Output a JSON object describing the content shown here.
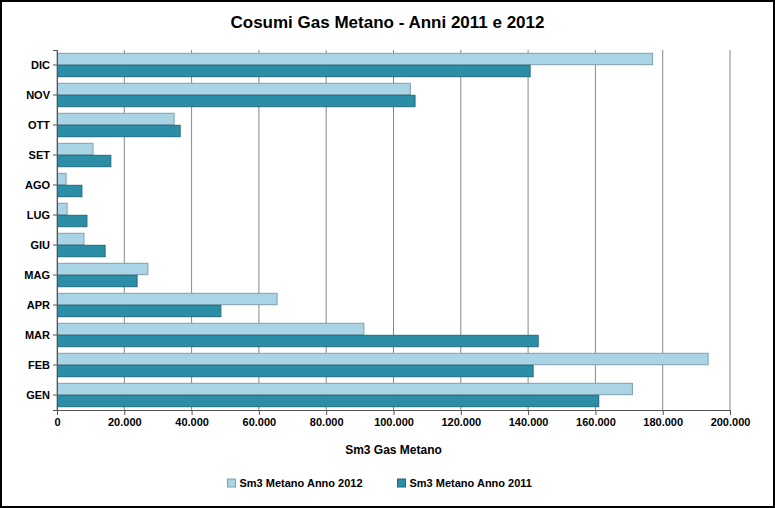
{
  "chart_data": {
    "type": "bar",
    "orientation": "horizontal",
    "title": "Cosumi Gas Metano - Anni 2011 e 2012",
    "x_label": "Sm3 Gas Metano",
    "categories": [
      "GEN",
      "FEB",
      "MAR",
      "APR",
      "MAG",
      "GIU",
      "LUG",
      "AGO",
      "SET",
      "OTT",
      "NOV",
      "DIC"
    ],
    "series": [
      {
        "name": "Sm3 Metano Anno 2012",
        "color": "#a9d4e6",
        "values": [
          171000,
          193500,
          91200,
          65400,
          27000,
          8000,
          3000,
          2700,
          10700,
          34800,
          105000,
          177000
        ]
      },
      {
        "name": "Sm3 Metano Anno 2011",
        "color": "#2b8ea6",
        "values": [
          161000,
          141500,
          143000,
          48700,
          23800,
          14300,
          8900,
          7400,
          16000,
          36600,
          106400,
          140600
        ]
      }
    ],
    "xlim": [
      0,
      200000
    ],
    "xticks": [
      0,
      {
        "value": 20000,
        "label": "20.000"
      },
      {
        "value": 40000,
        "label": "40.000"
      },
      {
        "value": 60000,
        "label": "60.000"
      },
      {
        "value": 80000,
        "label": "80.000"
      },
      {
        "value": 100000,
        "label": "100.000"
      },
      {
        "value": 120000,
        "label": "120.000"
      },
      {
        "value": 140000,
        "label": "140.000"
      },
      {
        "value": 160000,
        "label": "160.000"
      },
      {
        "value": 180000,
        "label": "180.000"
      },
      {
        "value": 200000,
        "label": "200.000"
      }
    ],
    "grid": true,
    "legend": "bottom"
  }
}
